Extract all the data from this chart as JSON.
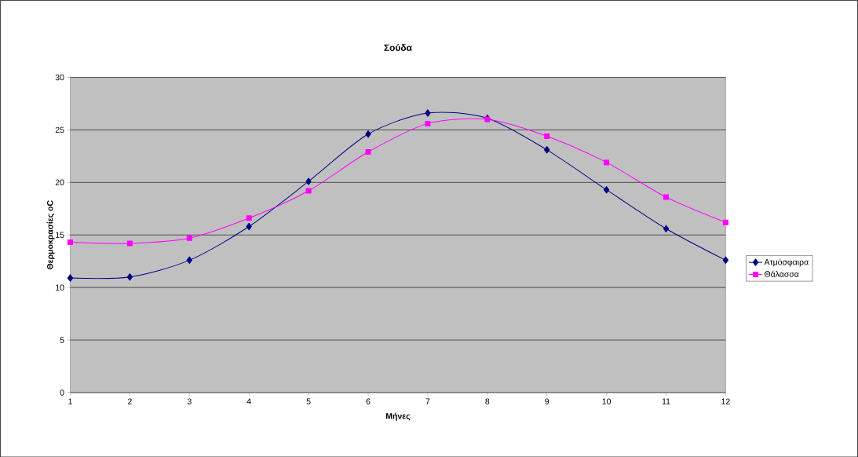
{
  "chart_data": {
    "type": "line",
    "title": "Σούδα",
    "xlabel": "Μήνες",
    "ylabel": "Θερμοκρασίες oC",
    "x": [
      1,
      2,
      3,
      4,
      5,
      6,
      7,
      8,
      9,
      10,
      11,
      12
    ],
    "series": [
      {
        "name": "Ατμόσφαιρα",
        "color": "#000080",
        "marker": "diamond",
        "values": [
          10.9,
          11.0,
          12.6,
          15.8,
          20.1,
          24.6,
          26.6,
          26.1,
          23.1,
          19.3,
          15.6,
          12.6
        ]
      },
      {
        "name": "Θάλασσα",
        "color": "#ff00ff",
        "marker": "square",
        "values": [
          14.3,
          14.2,
          14.7,
          16.6,
          19.2,
          22.9,
          25.6,
          26.0,
          24.4,
          21.9,
          18.6,
          16.2
        ]
      }
    ],
    "xlim": [
      1,
      12
    ],
    "xticks": [
      1,
      2,
      3,
      4,
      5,
      6,
      7,
      8,
      9,
      10,
      11,
      12
    ],
    "ylim": [
      0,
      30
    ],
    "yticks": [
      0,
      5,
      10,
      15,
      20,
      25,
      30
    ],
    "grid": "y",
    "legend": "right",
    "line_style": "solid"
  }
}
